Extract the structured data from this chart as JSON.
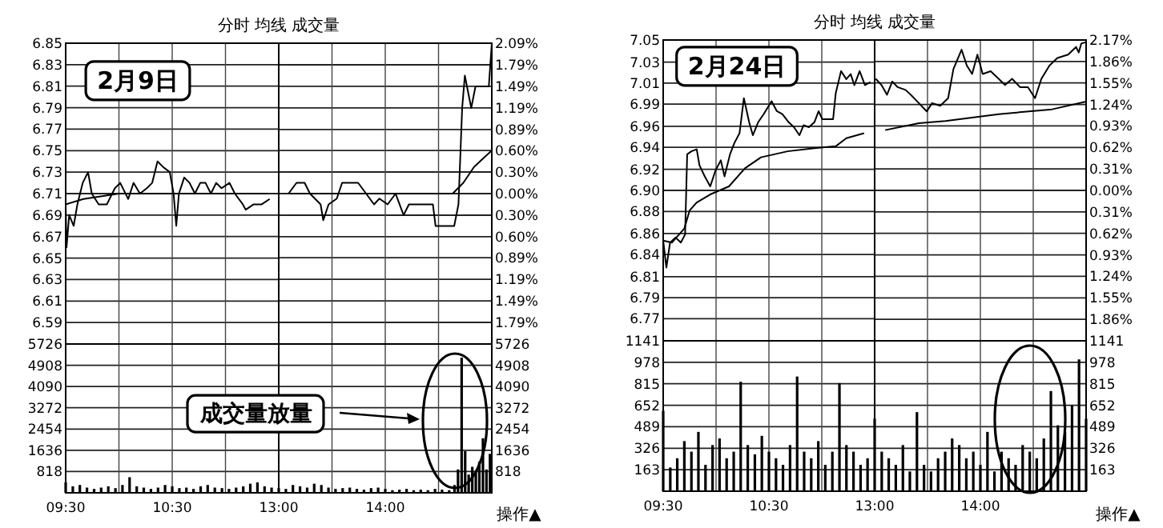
{
  "chart_data": [
    {
      "type": "line",
      "title": "分时 均线 成交量",
      "annotations": [
        "2月9日"
      ],
      "xlim": [
        9.5,
        11.5
      ],
      "xticks": [
        9.5,
        10,
        10.5,
        11,
        11.5
      ],
      "tick_labels": "y",
      "ylim": [
        6.57,
        6.85
      ],
      "yticks": [
        6.85,
        6.83,
        6.81,
        6.79,
        6.77,
        6.75,
        6.73,
        6.71,
        6.69,
        6.67,
        6.65,
        6.63,
        6.61,
        6.59
      ],
      "grid": true,
      "series": [
        {
          "color": "#000000",
          "x": [
            9.5,
            9.508,
            9.533,
            9.575,
            9.61,
            9.66,
            9.71,
            9.745,
            9.81,
            9.887,
            9.962,
            10.012,
            10.087,
            10.137,
            10.197,
            10.262,
            10.312,
            10.362,
            10.412,
            10.477,
            10.513,
            10.538,
            10.563,
            10.613,
            10.663,
            10.713,
            10.763,
            10.813,
            10.863,
            10.913,
            10.963,
            11.038,
            11.088,
            11.163,
            11.19,
            11.265,
            11.34,
            11.415
          ],
          "values": [
            6.7,
            6.66,
            6.69,
            6.68,
            6.7,
            6.72,
            6.73,
            6.71,
            6.7,
            6.7,
            6.715,
            6.72,
            6.705,
            6.72,
            6.71,
            6.715,
            6.72,
            6.74,
            6.735,
            6.73,
            6.71,
            6.68,
            6.71,
            6.725,
            6.72,
            6.71,
            6.72,
            6.72,
            6.71,
            6.72,
            6.715,
            6.72,
            6.71,
            6.7,
            6.695,
            6.7,
            6.7,
            6.705
          ]
        },
        {
          "color": "#000000",
          "x": [
            9.5,
            9.667,
            10,
            11.167,
            11.4
          ],
          "values": [
            6.7,
            6.705,
            6.71,
            6.71,
            6.71
          ]
        }
      ]
    },
    {
      "type": "line",
      "xlim": [
        13,
        15
      ],
      "xticks": [
        13,
        13.5,
        14,
        14.5,
        15
      ],
      "tick_labels": "y",
      "ylim": [
        -2.09,
        2.09
      ],
      "yticks": [
        {
          "value": 2.09,
          "label": "2.09%"
        },
        {
          "value": 1.79,
          "label": "1.79%"
        },
        {
          "value": 1.49,
          "label": "1.49%"
        },
        {
          "value": 1.19,
          "label": "1.19%"
        },
        {
          "value": 0.89,
          "label": "0.89%"
        },
        {
          "value": 0.6,
          "label": "0.60%"
        },
        {
          "value": 0.3,
          "label": "0.30%"
        },
        {
          "value": 0,
          "label": "0.00%"
        },
        {
          "value": -0.3,
          "label": "0.30%"
        },
        {
          "value": -0.6,
          "label": "0.60%"
        },
        {
          "value": -0.89,
          "label": "0.89%"
        },
        {
          "value": -1.19,
          "label": "1.19%"
        },
        {
          "value": -1.49,
          "label": "1.49%"
        },
        {
          "value": -1.79,
          "label": "1.79%"
        }
      ],
      "grid": true,
      "series": [
        {
          "color": "#000000",
          "x": [
            13.092,
            13.167,
            13.243,
            13.293,
            13.393,
            13.418,
            13.468,
            13.545,
            13.595,
            13.67,
            13.745,
            13.82,
            13.895,
            13.945,
            14.022,
            14.097,
            14.172,
            14.222,
            14.447,
            14.472,
            14.647,
            14.687,
            14.722,
            14.747,
            14.807,
            14.847,
            14.922,
            14.972,
            15
          ],
          "values": [
            0,
            0.15,
            0.15,
            0,
            -0.15,
            -0.37,
            -0.15,
            -0.07,
            0.15,
            0.15,
            0.15,
            0,
            -0.15,
            -0.07,
            -0.15,
            0,
            -0.3,
            -0.15,
            -0.15,
            -0.45,
            -0.45,
            -0.15,
            1.19,
            1.64,
            1.19,
            1.49,
            1.49,
            1.49,
            2.09
          ]
        },
        {
          "color": "#000000",
          "x": [
            13.1,
            14.633,
            14.733,
            14.833,
            15
          ],
          "values": [
            0,
            0,
            0.15,
            0.37,
            0.6
          ]
        }
      ]
    },
    {
      "type": "bar",
      "annotations": [
        "成交量放量"
      ],
      "xlim": [
        9.5,
        11.5
      ],
      "xticks": [
        {
          "value": 9.5,
          "label": "09:30"
        },
        {
          "value": 10,
          "label": null
        },
        {
          "value": 10.5,
          "label": "10:30"
        },
        {
          "value": 11,
          "label": null
        },
        {
          "value": 11.5,
          "label": null
        }
      ],
      "tick_labels": "xy",
      "ylim": [
        0,
        5726
      ],
      "yticks": [
        818,
        1636,
        2454,
        3272,
        4090,
        4908,
        5726
      ],
      "grid": true,
      "series": [
        {
          "color": "#000000",
          "x": [
            9.5,
            9.567,
            9.633,
            9.7,
            9.767,
            9.833,
            9.9,
            9.967,
            10.033,
            10.1,
            10.167,
            10.233,
            10.3,
            10.367,
            10.433,
            10.5,
            10.567,
            10.633,
            10.7,
            10.767,
            10.833,
            10.9,
            10.967,
            11.033,
            11.1,
            11.167,
            11.233,
            11.3,
            11.367,
            11.433
          ],
          "values": [
            400,
            250,
            300,
            200,
            150,
            200,
            250,
            180,
            300,
            600,
            250,
            200,
            150,
            200,
            300,
            250,
            180,
            200,
            150,
            250,
            300,
            200,
            180,
            150,
            200,
            250,
            350,
            400,
            250,
            200
          ]
        }
      ]
    },
    {
      "type": "bar",
      "annotations": [
        "操作▲"
      ],
      "xlim": [
        13,
        15
      ],
      "xticks": [
        {
          "value": 13,
          "label": "13:00"
        },
        {
          "value": 13.5,
          "label": null
        },
        {
          "value": 14,
          "label": "14:00"
        },
        {
          "value": 14.5,
          "label": null
        },
        {
          "value": 15,
          "label": null
        }
      ],
      "tick_labels": "xy",
      "ylim": [
        0,
        5726
      ],
      "yticks": [
        818,
        1636,
        2454,
        3272,
        4090,
        4908,
        5726
      ],
      "grid": true,
      "series": [
        {
          "color": "#000000",
          "x": [
            13,
            13.067,
            13.133,
            13.2,
            13.267,
            13.333,
            13.4,
            13.467,
            13.533,
            13.6,
            13.667,
            13.733,
            13.8,
            13.867,
            13.933,
            14,
            14.067,
            14.133,
            14.2,
            14.267,
            14.333,
            14.4,
            14.467,
            14.533,
            14.6,
            14.65,
            14.683,
            14.717,
            14.75,
            14.783,
            14.817,
            14.85,
            14.883,
            14.917,
            14.95,
            14.983
          ],
          "values": [
            180,
            150,
            300,
            250,
            200,
            350,
            300,
            200,
            150,
            180,
            200,
            150,
            120,
            180,
            200,
            150,
            100,
            120,
            150,
            100,
            120,
            100,
            150,
            120,
            100,
            300,
            900,
            5200,
            1600,
            700,
            1000,
            800,
            1200,
            2100,
            900,
            1500
          ]
        }
      ]
    },
    {
      "type": "line",
      "title": "分时 均线 成交量",
      "annotations": [
        "2月24日"
      ],
      "xlim": [
        9.5,
        11.5
      ],
      "xticks": [
        9.5,
        10,
        10.5,
        11,
        11.5
      ],
      "tick_labels": "y",
      "ylim": [
        6.75,
        7.05
      ],
      "yticks": [
        7.05,
        {
          "value": 7.028,
          "label": "7.03"
        },
        {
          "value": 7.007,
          "label": "7.01"
        },
        {
          "value": 6.986,
          "label": "6.99"
        },
        {
          "value": 6.964,
          "label": "6.96"
        },
        {
          "value": 6.943,
          "label": "6.94"
        },
        {
          "value": 6.921,
          "label": "6.92"
        },
        {
          "value": 6.9,
          "label": "6.90"
        },
        {
          "value": 6.879,
          "label": "6.88"
        },
        {
          "value": 6.857,
          "label": "6.86"
        },
        {
          "value": 6.836,
          "label": "6.84"
        },
        {
          "value": 6.814,
          "label": "6.81"
        },
        {
          "value": 6.793,
          "label": "6.79"
        },
        {
          "value": 6.772,
          "label": "6.77"
        }
      ],
      "grid": true,
      "series": [
        {
          "color": "#000000",
          "x": [
            9.5,
            9.53,
            9.565,
            9.617,
            9.667,
            9.707,
            9.727,
            9.767,
            9.817,
            9.843,
            9.893,
            9.945,
            9.995,
            10.045,
            10.08,
            10.132,
            10.172,
            10.222,
            10.263,
            10.313,
            10.348,
            10.398,
            10.45,
            10.525,
            10.575,
            10.627,
            10.687,
            10.737,
            10.788,
            10.828,
            10.878,
            10.93,
            10.97,
            11.005,
            11.03,
            11.107,
            11.132,
            11.182,
            11.232,
            11.273,
            11.308,
            11.358,
            11.408,
            11.46
          ],
          "values": [
            6.85,
            6.823,
            6.848,
            6.853,
            6.848,
            6.856,
            6.936,
            6.939,
            6.941,
            6.925,
            6.914,
            6.904,
            6.92,
            6.93,
            6.914,
            6.936,
            6.947,
            6.957,
            6.992,
            6.968,
            6.955,
            6.968,
            6.976,
            6.989,
            6.979,
            6.976,
            6.968,
            6.963,
            6.955,
            6.965,
            6.963,
            6.968,
            6.979,
            6.971,
            6.971,
            6.971,
            6.997,
            7.019,
            7.011,
            7.016,
            7.005,
            7.019,
            7.005,
            7.008
          ]
        },
        {
          "color": "#000000",
          "x": [
            9.5,
            9.583,
            9.7,
            9.75,
            9.817,
            9.945,
            10.122,
            10.273,
            10.425,
            10.677,
            10.93,
            11.132,
            11.232,
            11.4
          ],
          "values": [
            6.85,
            6.848,
            6.862,
            6.88,
            6.888,
            6.896,
            6.904,
            6.922,
            6.933,
            6.939,
            6.942,
            6.944,
            6.952,
            6.957
          ]
        }
      ]
    },
    {
      "type": "line",
      "xlim": [
        13,
        15
      ],
      "xticks": [
        13,
        13.5,
        14,
        14.5,
        15
      ],
      "tick_labels": "y",
      "ylim": [
        -2.17,
        2.17
      ],
      "yticks": [
        {
          "value": 2.17,
          "label": "2.17%"
        },
        {
          "value": 1.86,
          "label": "1.86%"
        },
        {
          "value": 1.55,
          "label": "1.55%"
        },
        {
          "value": 1.24,
          "label": "1.24%"
        },
        {
          "value": 0.93,
          "label": "0.93%"
        },
        {
          "value": 0.62,
          "label": "0.62%"
        },
        {
          "value": 0.31,
          "label": "0.31%"
        },
        {
          "value": 0,
          "label": "0.00%"
        },
        {
          "value": -0.31,
          "label": "0.31%"
        },
        {
          "value": -0.62,
          "label": "0.62%"
        },
        {
          "value": -0.93,
          "label": "0.93%"
        },
        {
          "value": -1.24,
          "label": "1.24%"
        },
        {
          "value": -1.55,
          "label": "1.55%"
        },
        {
          "value": -1.86,
          "label": "1.86%"
        }
      ],
      "grid": true,
      "series": [
        {
          "color": "#000000",
          "x": [
            13.01,
            13.065,
            13.117,
            13.167,
            13.217,
            13.292,
            13.342,
            13.418,
            13.493,
            13.543,
            13.62,
            13.695,
            13.745,
            13.822,
            13.872,
            13.922,
            13.972,
            14.022,
            14.097,
            14.173,
            14.233,
            14.3,
            14.375,
            14.45,
            14.517,
            14.577,
            14.653,
            14.728,
            14.83,
            14.905,
            14.93,
            14.955,
            15
          ],
          "values": [
            1.61,
            1.52,
            1.38,
            1.57,
            1.49,
            1.45,
            1.38,
            1.26,
            1.14,
            1.26,
            1.22,
            1.33,
            1.75,
            2.03,
            1.8,
            1.68,
            1.96,
            1.68,
            1.72,
            1.61,
            1.52,
            1.61,
            1.49,
            1.49,
            1.33,
            1.61,
            1.8,
            1.91,
            1.96,
            2.07,
            1.99,
            2.12,
            2.14
          ]
        },
        {
          "color": "#000000",
          "x": [
            13.1,
            13.418,
            13.67,
            14.173,
            14.678,
            15
          ],
          "values": [
            0.87,
            0.97,
            1.0,
            1.1,
            1.17,
            1.28
          ]
        }
      ]
    },
    {
      "type": "bar",
      "xlim": [
        9.5,
        11.5
      ],
      "xticks": [
        {
          "value": 9.5,
          "label": "09:30"
        },
        {
          "value": 10,
          "label": null
        },
        {
          "value": 10.5,
          "label": "10:30"
        },
        {
          "value": 11,
          "label": null
        },
        {
          "value": 11.5,
          "label": null
        }
      ],
      "tick_labels": "xy",
      "ylim": [
        0,
        1141
      ],
      "yticks": [
        163,
        326,
        489,
        652,
        815,
        978,
        1141
      ],
      "grid": true,
      "series": [
        {
          "color": "#000000",
          "x": [
            9.5,
            9.567,
            9.633,
            9.7,
            9.767,
            9.833,
            9.9,
            9.967,
            10.033,
            10.1,
            10.167,
            10.233,
            10.3,
            10.367,
            10.433,
            10.5,
            10.567,
            10.633,
            10.7,
            10.767,
            10.833,
            10.9,
            10.967,
            11.033,
            11.1,
            11.167,
            11.233,
            11.3,
            11.367,
            11.433
          ],
          "values": [
            610,
            180,
            250,
            380,
            300,
            450,
            200,
            350,
            400,
            250,
            300,
            830,
            350,
            280,
            420,
            300,
            250,
            200,
            350,
            870,
            300,
            250,
            380,
            200,
            300,
            820,
            350,
            300,
            200,
            250
          ]
        }
      ]
    },
    {
      "type": "bar",
      "annotations": [
        "操作▲"
      ],
      "xlim": [
        13,
        15
      ],
      "xticks": [
        {
          "value": 13,
          "label": "13:00"
        },
        {
          "value": 13.5,
          "label": null
        },
        {
          "value": 14,
          "label": "14:00"
        },
        {
          "value": 14.5,
          "label": null
        },
        {
          "value": 15,
          "label": null
        }
      ],
      "tick_labels": "xy",
      "ylim": [
        0,
        1141
      ],
      "yticks": [
        163,
        326,
        489,
        652,
        815,
        978,
        1141
      ],
      "grid": true,
      "series": [
        {
          "color": "#000000",
          "x": [
            13,
            13.067,
            13.133,
            13.2,
            13.267,
            13.333,
            13.4,
            13.467,
            13.533,
            13.6,
            13.667,
            13.733,
            13.8,
            13.867,
            13.933,
            14,
            14.067,
            14.133,
            14.2,
            14.267,
            14.333,
            14.4,
            14.467,
            14.533,
            14.6,
            14.667,
            14.733,
            14.8,
            14.867,
            14.933,
            15
          ],
          "values": [
            550,
            300,
            250,
            200,
            350,
            150,
            600,
            200,
            150,
            250,
            300,
            400,
            350,
            250,
            300,
            200,
            450,
            150,
            300,
            250,
            200,
            350,
            300,
            250,
            400,
            760,
            500,
            450,
            650,
            1000,
            550
          ]
        }
      ]
    }
  ]
}
